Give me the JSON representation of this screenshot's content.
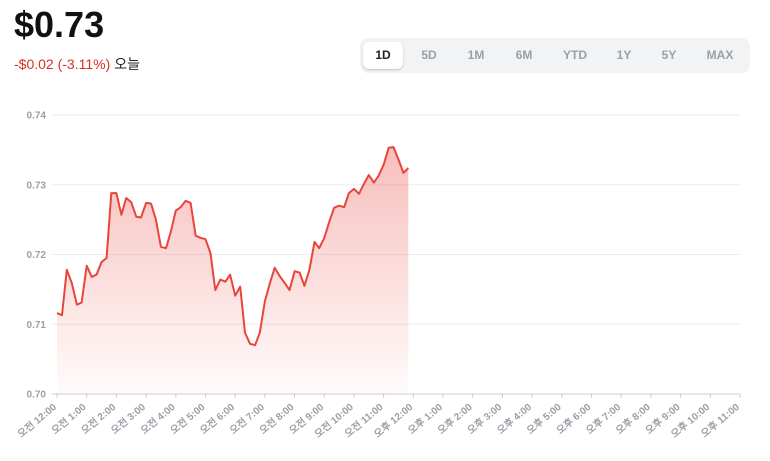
{
  "header": {
    "price": "$0.73",
    "change": "-$0.02 (-3.11%)",
    "period": "오늘"
  },
  "ranges": {
    "options": [
      "1D",
      "5D",
      "1M",
      "6M",
      "YTD",
      "1Y",
      "5Y",
      "MAX"
    ],
    "selected_index": 0
  },
  "chart_data": {
    "type": "area",
    "color": "#e8453c",
    "grid": true,
    "x": [
      0,
      0.17,
      0.33,
      0.5,
      0.67,
      0.83,
      1,
      1.17,
      1.33,
      1.5,
      1.67,
      1.83,
      2,
      2.17,
      2.33,
      2.5,
      2.67,
      2.83,
      3,
      3.17,
      3.33,
      3.5,
      3.67,
      3.83,
      4,
      4.17,
      4.33,
      4.5,
      4.67,
      4.83,
      5,
      5.17,
      5.33,
      5.5,
      5.67,
      5.83,
      6,
      6.17,
      6.33,
      6.5,
      6.67,
      6.83,
      7,
      7.17,
      7.33,
      7.5,
      7.67,
      7.83,
      8,
      8.17,
      8.33,
      8.5,
      8.67,
      8.83,
      9,
      9.17,
      9.33,
      9.5,
      9.67,
      9.83,
      10,
      10.17,
      10.33,
      10.5,
      10.67,
      10.83,
      11,
      11.17,
      11.33,
      11.5,
      11.67,
      11.83
    ],
    "values": [
      0.7116,
      0.7113,
      0.7178,
      0.7159,
      0.7128,
      0.7131,
      0.7184,
      0.7168,
      0.7171,
      0.7189,
      0.7195,
      0.7288,
      0.7288,
      0.7257,
      0.7281,
      0.7275,
      0.7254,
      0.7253,
      0.7274,
      0.7273,
      0.725,
      0.7211,
      0.7209,
      0.7232,
      0.7263,
      0.7268,
      0.7277,
      0.7274,
      0.7227,
      0.7224,
      0.7222,
      0.7202,
      0.7149,
      0.7164,
      0.7161,
      0.7171,
      0.7141,
      0.7154,
      0.7088,
      0.7072,
      0.707,
      0.7088,
      0.7133,
      0.7159,
      0.7181,
      0.7169,
      0.7159,
      0.7149,
      0.7176,
      0.7174,
      0.7155,
      0.7178,
      0.7218,
      0.7209,
      0.7224,
      0.7247,
      0.7267,
      0.727,
      0.7268,
      0.7288,
      0.7294,
      0.7287,
      0.7301,
      0.7314,
      0.7303,
      0.7313,
      0.7329,
      0.7353,
      0.7354,
      0.7336,
      0.7317,
      0.7324
    ],
    "ylim": [
      0.7,
      0.74
    ],
    "yticks": [
      {
        "value": 0.7,
        "label": "0.70"
      },
      0.71,
      0.72,
      0.73,
      0.74
    ],
    "xlim": [
      0,
      23
    ],
    "xticks": [
      {
        "value": 0,
        "label": "오전 12:00"
      },
      {
        "value": 1,
        "label": "오전 1:00"
      },
      {
        "value": 2,
        "label": "오전 2:00"
      },
      {
        "value": 3,
        "label": "오전 3:00"
      },
      {
        "value": 4,
        "label": "오전 4:00"
      },
      {
        "value": 5,
        "label": "오전 5:00"
      },
      {
        "value": 6,
        "label": "오전 6:00"
      },
      {
        "value": 7,
        "label": "오전 7:00"
      },
      {
        "value": 8,
        "label": "오전 8:00"
      },
      {
        "value": 9,
        "label": "오전 9:00"
      },
      {
        "value": 10,
        "label": "오전 10:00"
      },
      {
        "value": 11,
        "label": "오전 11:00"
      },
      {
        "value": 12,
        "label": "오후 12:00"
      },
      {
        "value": 13,
        "label": "오후 1:00"
      },
      {
        "value": 14,
        "label": "오후 2:00"
      },
      {
        "value": 15,
        "label": "오후 3:00"
      },
      {
        "value": 16,
        "label": "오후 4:00"
      },
      {
        "value": 17,
        "label": "오후 5:00"
      },
      {
        "value": 18,
        "label": "오후 6:00"
      },
      {
        "value": 19,
        "label": "오후 7:00"
      },
      {
        "value": 20,
        "label": "오후 8:00"
      },
      {
        "value": 21,
        "label": "오후 9:00"
      },
      {
        "value": 22,
        "label": "오후 10:00"
      },
      {
        "value": 23,
        "label": "오후 11:00"
      }
    ]
  }
}
